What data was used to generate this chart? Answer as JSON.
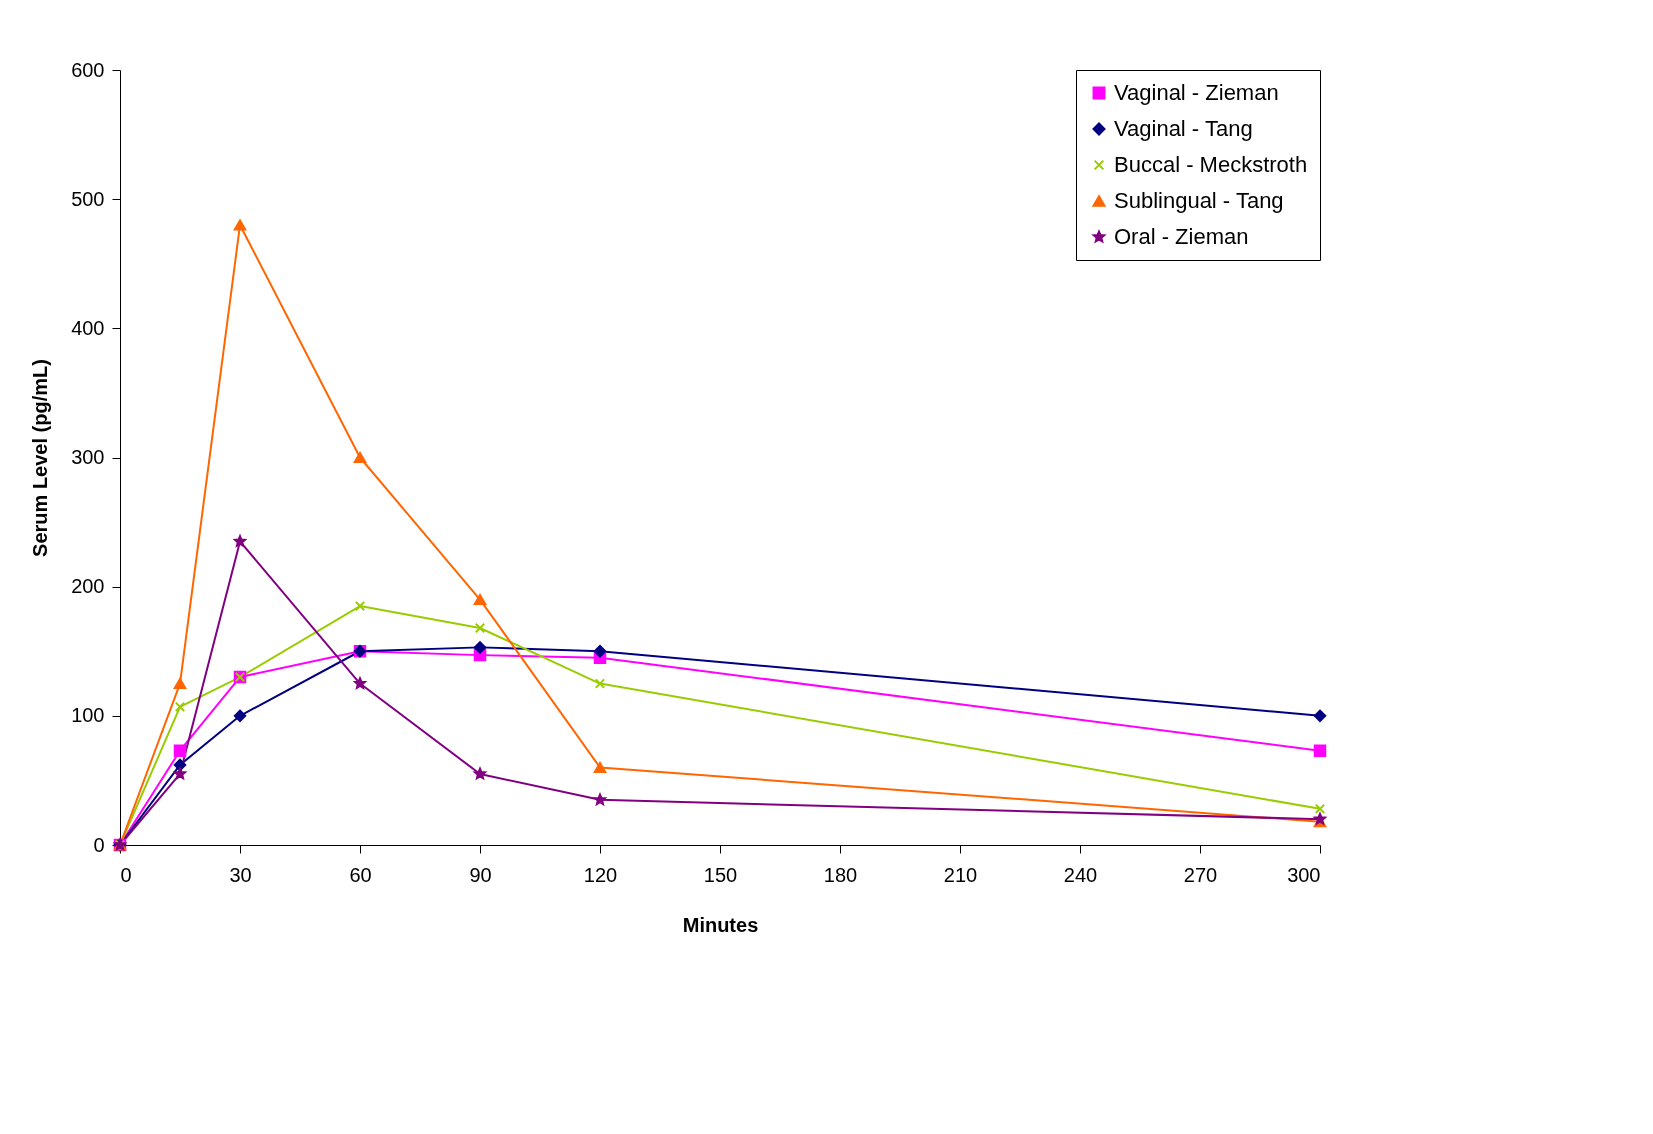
{
  "chart_data": {
    "type": "line",
    "xlabel": "Minutes",
    "ylabel": "Serum Level (pg/mL)",
    "x": [
      0,
      15,
      30,
      60,
      90,
      120,
      300
    ],
    "series": [
      {
        "name": "Vaginal - Zieman",
        "color": "#ff00ff",
        "marker": "square",
        "values": [
          0,
          73,
          130,
          150,
          147,
          145,
          73
        ]
      },
      {
        "name": "Vaginal - Tang",
        "color": "#000080",
        "marker": "diamond",
        "values": [
          0,
          62,
          100,
          150,
          153,
          150,
          100
        ]
      },
      {
        "name": "Buccal - Meckstroth",
        "color": "#99cc00",
        "marker": "cross",
        "values": [
          0,
          107,
          130,
          185,
          168,
          125,
          28
        ]
      },
      {
        "name": "Sublingual - Tang",
        "color": "#ff6600",
        "marker": "triangle",
        "values": [
          0,
          125,
          480,
          300,
          190,
          60,
          18
        ]
      },
      {
        "name": "Oral - Zieman",
        "color": "#800080",
        "marker": "star",
        "values": [
          0,
          55,
          235,
          125,
          55,
          35,
          20
        ]
      }
    ],
    "xlim": [
      0,
      300
    ],
    "xticks": [
      0,
      30,
      60,
      90,
      120,
      150,
      180,
      210,
      240,
      270,
      300
    ],
    "ylim": [
      0,
      600
    ],
    "yticks": [
      0,
      100,
      200,
      300,
      400,
      500,
      600
    ],
    "grid": false,
    "legend": "top right"
  }
}
